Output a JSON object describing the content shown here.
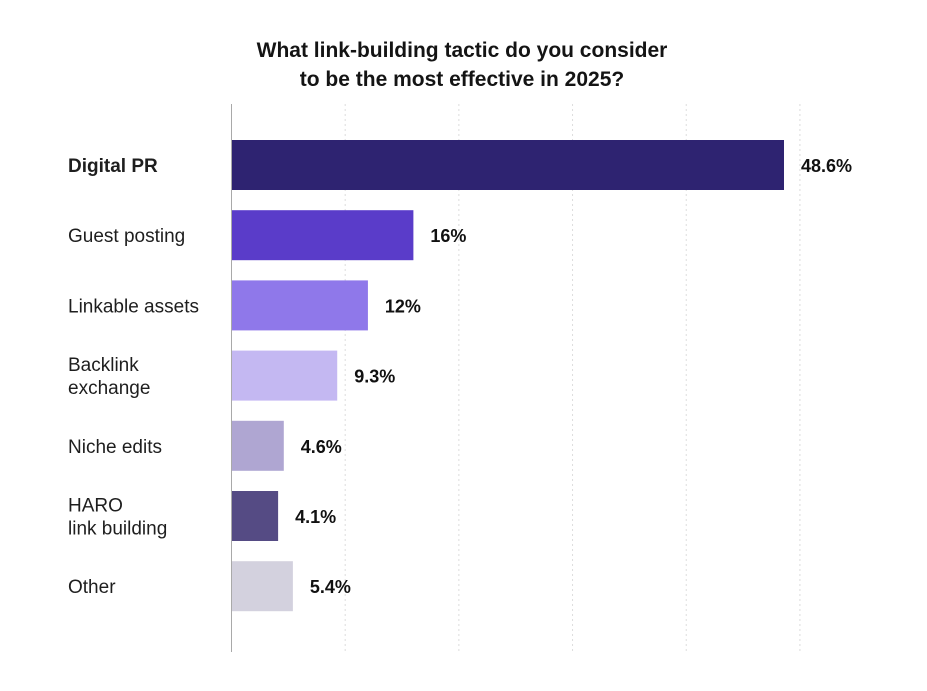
{
  "chart_data": {
    "type": "bar",
    "orientation": "horizontal",
    "title": [
      "What link-building tactic do you consider",
      "to be the most effective in 2025?"
    ],
    "categories": [
      [
        "Digital PR"
      ],
      [
        "Guest posting"
      ],
      [
        "Linkable assets"
      ],
      [
        "Backlink",
        "exchange"
      ],
      [
        "Niche edits"
      ],
      [
        "HARO",
        "link building"
      ],
      [
        "Other"
      ]
    ],
    "values": [
      48.6,
      16,
      12,
      9.3,
      4.6,
      4.1,
      5.4
    ],
    "value_labels": [
      "48.6%",
      "16%",
      "12%",
      "9.3%",
      "4.6%",
      "4.1%",
      "5.4%"
    ],
    "colors": [
      "#2e2371",
      "#5a3cc9",
      "#8f78ea",
      "#c4b8f2",
      "#afa6d2",
      "#554b84",
      "#d3d1de"
    ],
    "xlim": [
      0,
      50
    ],
    "grid": true,
    "legend": "none"
  }
}
